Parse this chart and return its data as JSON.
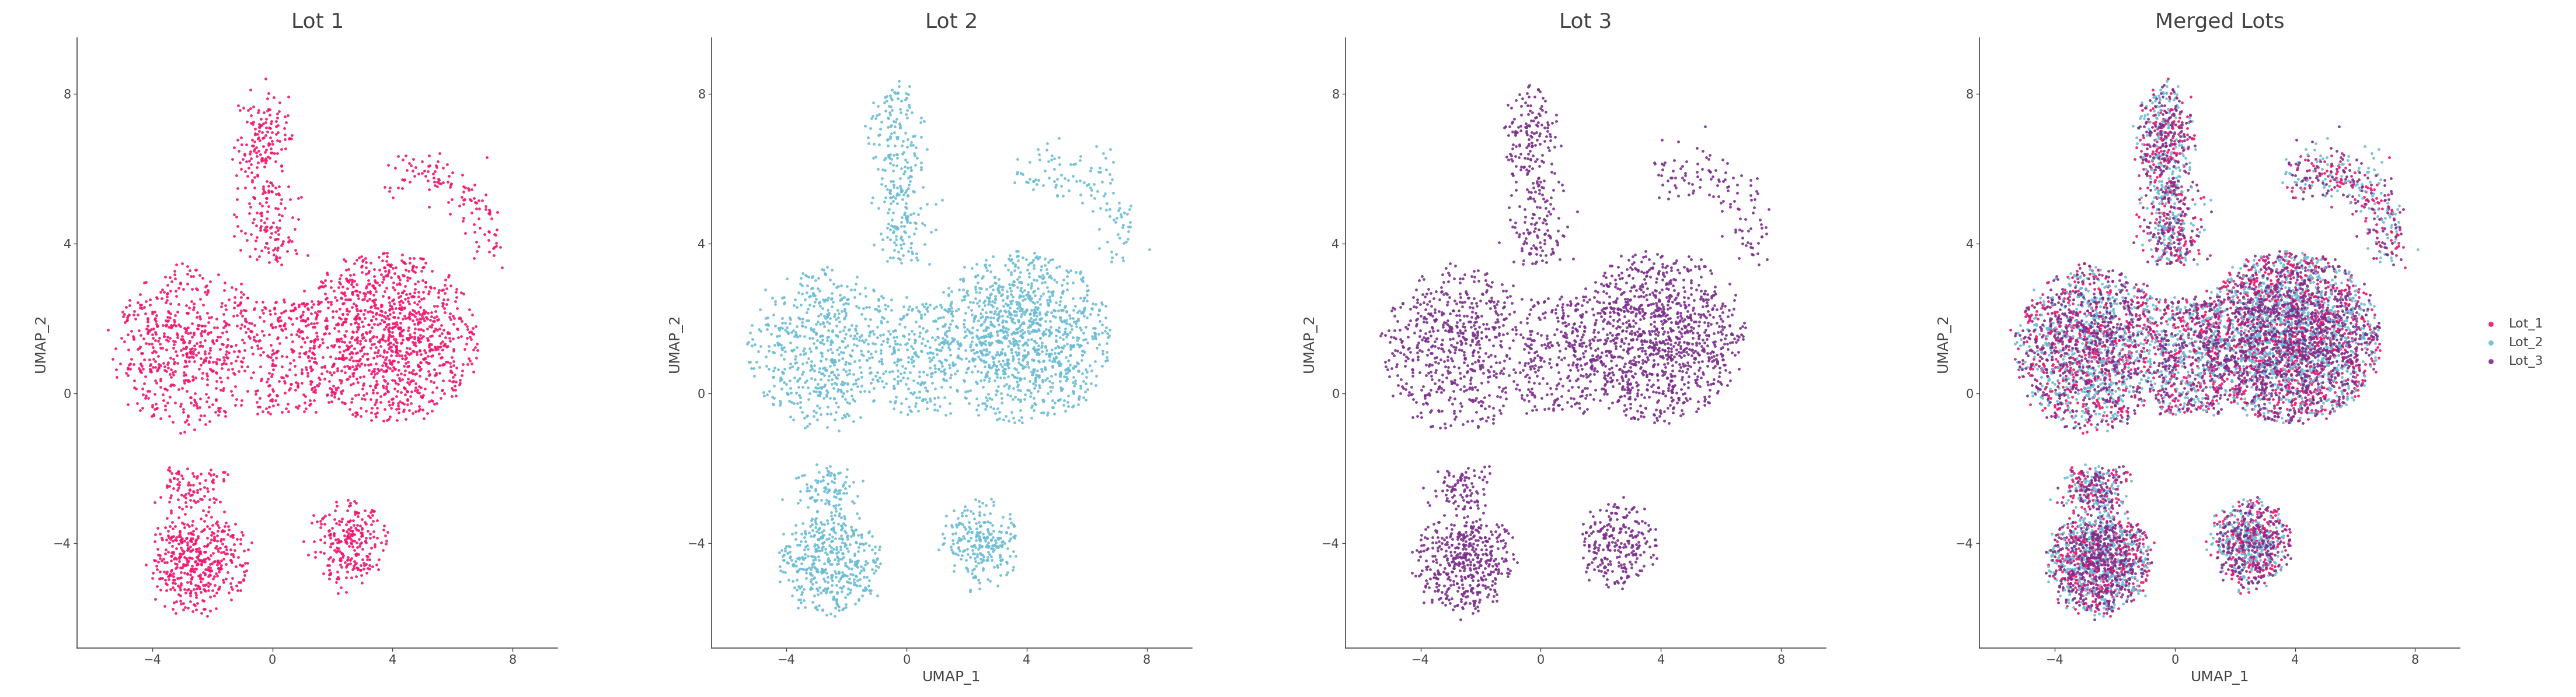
{
  "titles": [
    "Lot 1",
    "Lot 2",
    "Lot 3",
    "Merged Lots"
  ],
  "xlabel": "UMAP_1",
  "ylabel": "UMAP_2",
  "colors": {
    "lot1": "#F0146E",
    "lot2": "#6BBCD4",
    "lot3": "#7B2D8B"
  },
  "legend_labels": [
    "Lot_1",
    "Lot_2",
    "Lot_3"
  ],
  "xlim": [
    -6.5,
    9.5
  ],
  "ylim": [
    -6.8,
    9.5
  ],
  "xticks": [
    -4,
    0,
    4,
    8
  ],
  "yticks": [
    -4,
    0,
    4,
    8
  ],
  "n_points": 3000,
  "title_fontsize": 26,
  "label_fontsize": 18,
  "tick_fontsize": 15,
  "point_size": 12,
  "point_alpha": 0.9,
  "background_color": "#ffffff",
  "axis_color": "#444444"
}
